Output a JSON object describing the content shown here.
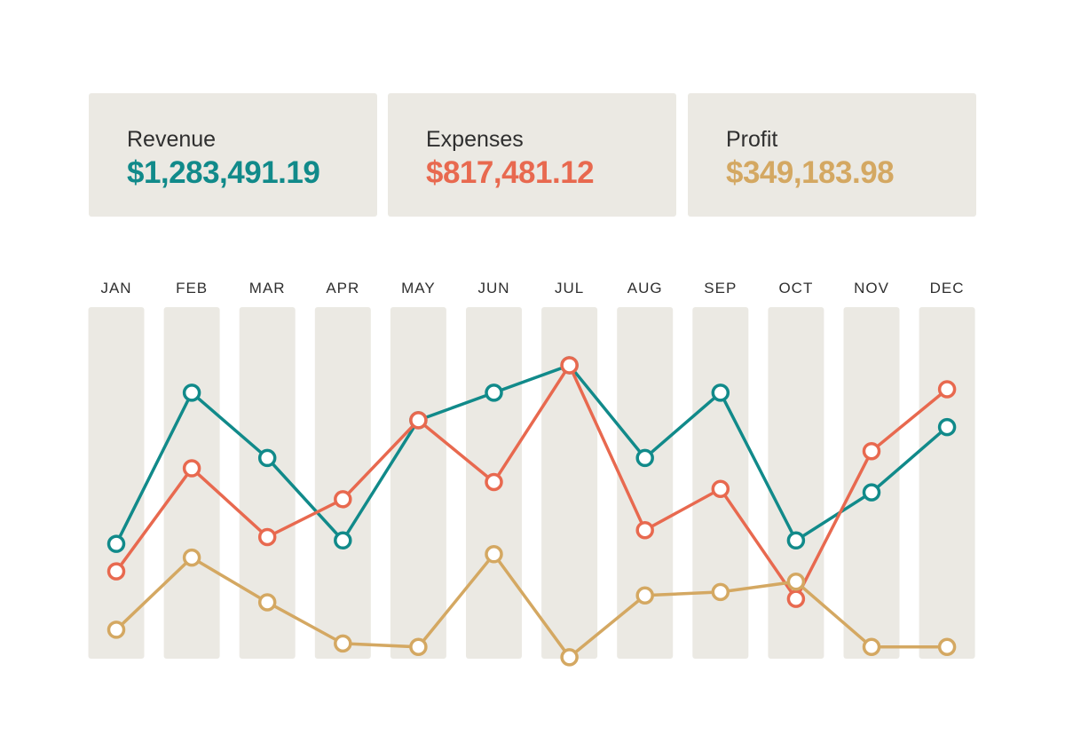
{
  "summary": {
    "revenue": {
      "label": "Revenue",
      "value": "$1,283,491.19",
      "color": "#118a8a"
    },
    "expenses": {
      "label": "Expenses",
      "value": "$817,481.12",
      "color": "#e8694f"
    },
    "profit": {
      "label": "Profit",
      "value": "$349,183.98",
      "color": "#d4a862"
    }
  },
  "colors": {
    "card_bg": "#ebe9e3",
    "column_bg": "#ebe9e3",
    "month_text": "#2f2f2f"
  },
  "chart_data": {
    "type": "line",
    "categories": [
      "JAN",
      "FEB",
      "MAR",
      "APR",
      "MAY",
      "JUN",
      "JUL",
      "AUG",
      "SEP",
      "OCT",
      "NOV",
      "DEC"
    ],
    "ylim": [
      0,
      100
    ],
    "grid": false,
    "legend": "none",
    "series": [
      {
        "name": "Revenue",
        "color": "#118a8a",
        "values": [
          36,
          80,
          61,
          37,
          72,
          80,
          88,
          61,
          80,
          37,
          51,
          70
        ]
      },
      {
        "name": "Expenses",
        "color": "#e8694f",
        "values": [
          28,
          58,
          38,
          49,
          72,
          54,
          88,
          40,
          52,
          20,
          63,
          81
        ]
      },
      {
        "name": "Profit",
        "color": "#d4a862",
        "values": [
          11,
          32,
          19,
          7,
          6,
          33,
          3,
          21,
          22,
          25,
          6,
          6
        ]
      }
    ]
  }
}
